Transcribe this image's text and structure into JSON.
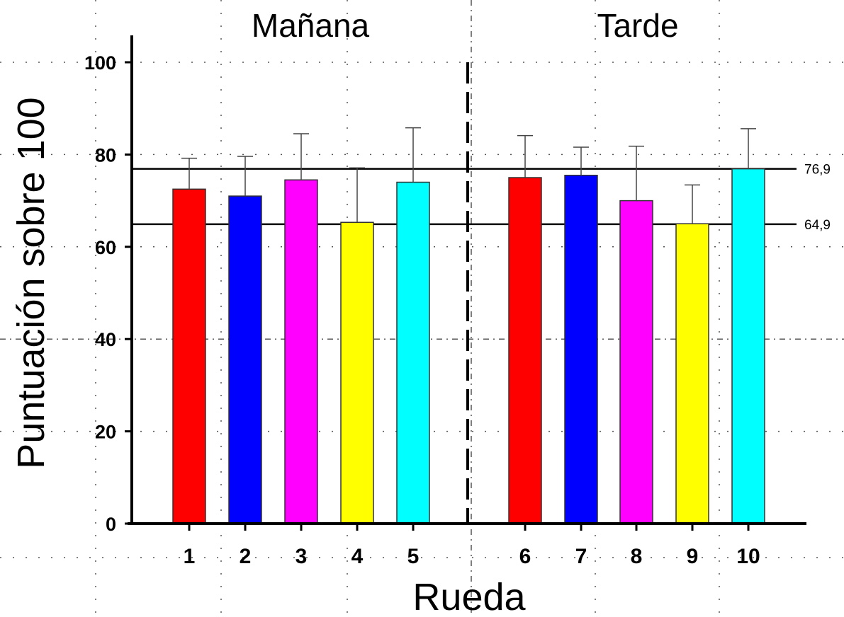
{
  "chart_data": {
    "type": "bar",
    "xlabel": "Rueda",
    "ylabel": "Puntuación sobre 100",
    "ylim": [
      0,
      100
    ],
    "yticks": [
      "0",
      "20",
      "40",
      "60",
      "80",
      "100"
    ],
    "groups": [
      {
        "label": "Mañana",
        "categories": [
          "1",
          "2",
          "3",
          "4",
          "5"
        ]
      },
      {
        "label": "Tarde",
        "categories": [
          "6",
          "7",
          "8",
          "9",
          "10"
        ]
      }
    ],
    "categories": [
      "1",
      "2",
      "3",
      "4",
      "5",
      "6",
      "7",
      "8",
      "9",
      "10"
    ],
    "values": [
      72.5,
      71.0,
      74.5,
      65.3,
      74.0,
      75.0,
      75.5,
      70.0,
      65.0,
      76.9
    ],
    "error_upper": [
      79.2,
      79.6,
      84.5,
      77.1,
      85.8,
      84.1,
      81.6,
      81.8,
      73.4,
      85.6
    ],
    "colors": [
      "#ff0000",
      "#0000ff",
      "#ff00ff",
      "#ffff00",
      "#00ffff",
      "#ff0000",
      "#0000ff",
      "#ff00ff",
      "#ffff00",
      "#00ffff"
    ],
    "reference_lines": [
      {
        "value": 76.9,
        "label": "76,9"
      },
      {
        "value": 64.9,
        "label": "64,9"
      }
    ],
    "grid": "dotted",
    "legend": "none"
  }
}
